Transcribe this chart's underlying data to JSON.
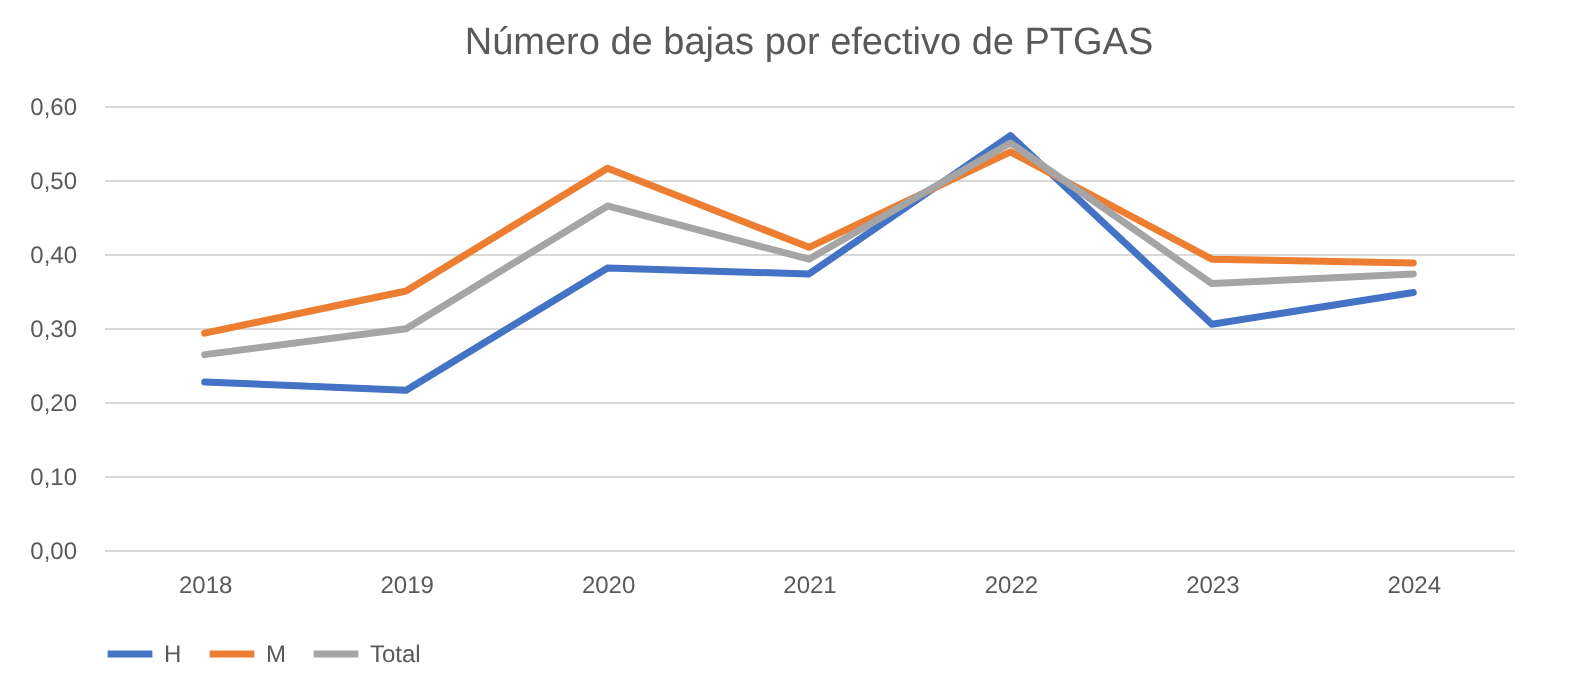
{
  "chart_data": {
    "type": "line",
    "title": "Número de bajas por efectivo de PTGAS",
    "categories": [
      "2018",
      "2019",
      "2020",
      "2021",
      "2022",
      "2023",
      "2024"
    ],
    "series": [
      {
        "name": "H",
        "color": "#4472c4",
        "values": [
          0.227,
          0.216,
          0.381,
          0.373,
          0.56,
          0.305,
          0.348
        ]
      },
      {
        "name": "M",
        "color": "#ed7d31",
        "values": [
          0.293,
          0.35,
          0.516,
          0.409,
          0.538,
          0.393,
          0.388
        ]
      },
      {
        "name": "Total",
        "color": "#a5a5a5",
        "values": [
          0.264,
          0.299,
          0.465,
          0.393,
          0.55,
          0.36,
          0.373
        ]
      }
    ],
    "ylim": [
      0,
      0.6
    ],
    "yticks": [
      {
        "value": 0,
        "label": "0,00"
      },
      {
        "value": 0.1,
        "label": "0,10"
      },
      {
        "value": 0.2,
        "label": "0,20"
      },
      {
        "value": 0.3,
        "label": "0,30"
      },
      {
        "value": 0.4,
        "label": "0,40"
      },
      {
        "value": 0.5,
        "label": "0,50"
      },
      {
        "value": 0.6,
        "label": "0,60"
      }
    ],
    "grid": "y",
    "legend": "bottom",
    "marker": "none",
    "line_style": "solid"
  }
}
